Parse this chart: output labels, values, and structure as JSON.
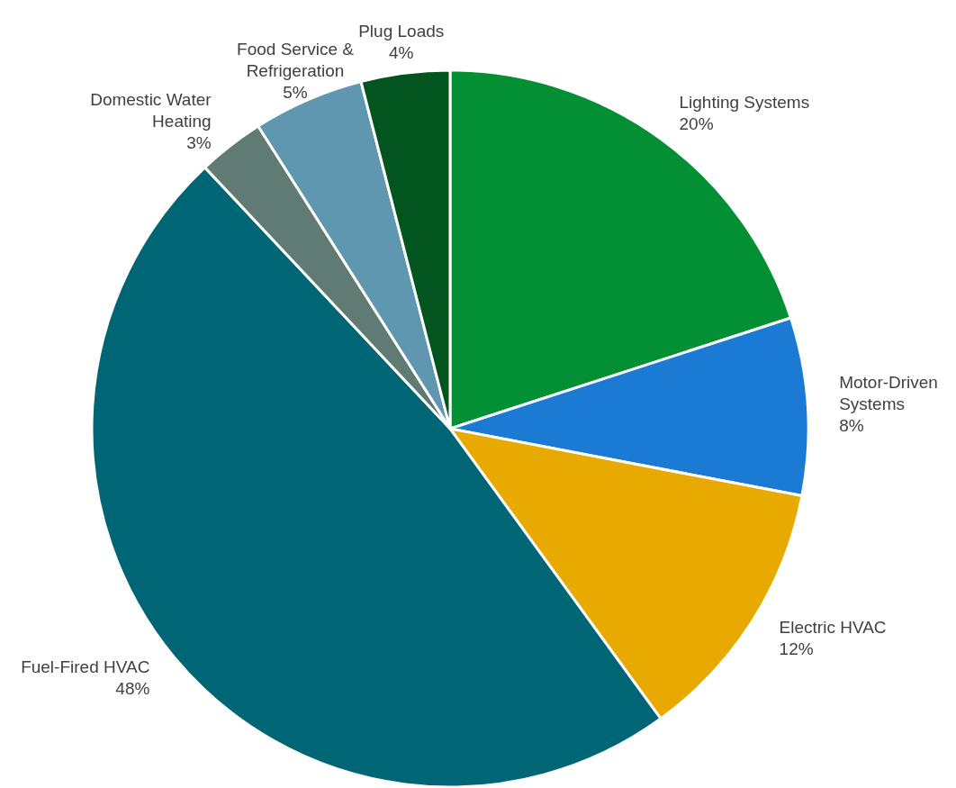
{
  "chart_data": {
    "type": "pie",
    "categories": [
      "Lighting Systems",
      "Motor-Driven Systems",
      "Electric HVAC",
      "Fuel-Fired HVAC",
      "Domestic Water Heating",
      "Food Service & Refrigeration",
      "Plug Loads"
    ],
    "values": [
      20,
      8,
      12,
      48,
      3,
      5,
      4
    ],
    "colors": [
      "#039035",
      "#1a7ad4",
      "#e8a900",
      "#006675",
      "#5f7b73",
      "#5f97b1",
      "#03551f"
    ],
    "value_labels": [
      "20%",
      "8%",
      "12%",
      "48%",
      "3%",
      "5%",
      "4%"
    ]
  }
}
